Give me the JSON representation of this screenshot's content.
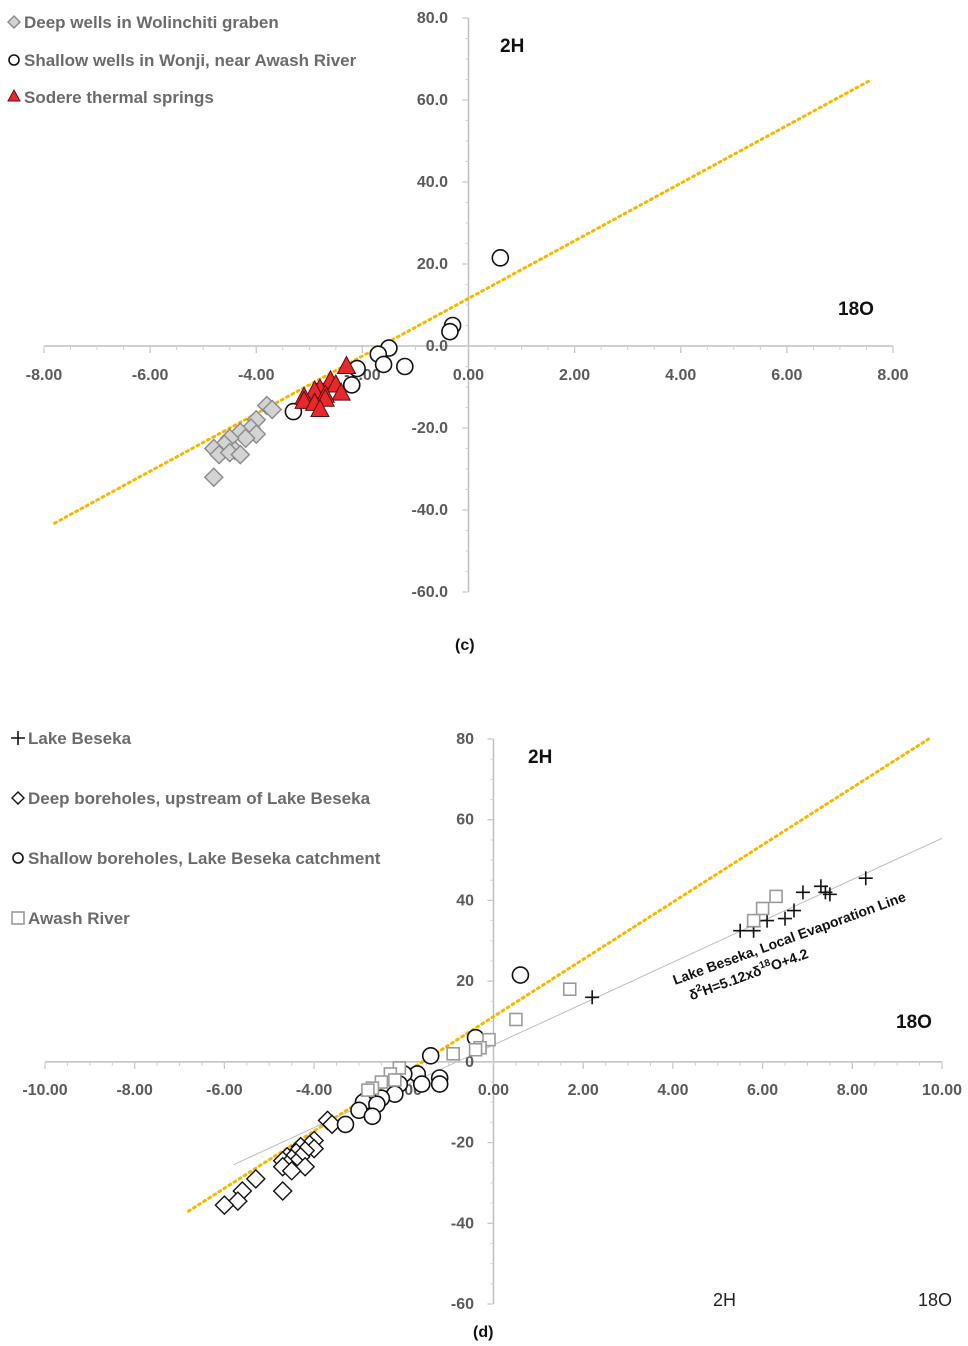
{
  "chart_data": [
    {
      "type": "scatter",
      "panel_label": "(c)",
      "xlabel": "18O",
      "ylabel": "2H",
      "xlim": [
        -8,
        8
      ],
      "ylim": [
        -60,
        80
      ],
      "x_ticks": [
        "-8.00",
        "-6.00",
        "-4.00",
        "-2.00",
        "0.00",
        "2.00",
        "4.00",
        "6.00",
        "8.00"
      ],
      "y_ticks": [
        "80.0",
        "60.0",
        "40.0",
        "20.0",
        "0.0",
        "-20.0",
        "-40.0",
        "-60.0"
      ],
      "legend_position": "top-left",
      "colors": {
        "line": "#f5b800",
        "triangle": "#e8282b",
        "diamond": "#d3d3d3"
      },
      "lines": [
        {
          "style": "dotted",
          "color": "#f5b800",
          "x": [
            -7.8,
            7.6
          ],
          "y": [
            -43.2,
            65.0
          ]
        }
      ],
      "series": [
        {
          "name": "Deep wells in Wolinchiti graben",
          "marker": "diamond",
          "points": [
            [
              -3.8,
              -14.5
            ],
            [
              -3.7,
              -15.5
            ],
            [
              -4.0,
              -18.0
            ],
            [
              -4.1,
              -20.0
            ],
            [
              -4.0,
              -21.5
            ],
            [
              -4.3,
              -21.0
            ],
            [
              -4.2,
              -22.5
            ],
            [
              -4.5,
              -22.5
            ],
            [
              -4.6,
              -24.0
            ],
            [
              -4.8,
              -25.0
            ],
            [
              -4.4,
              -25.5
            ],
            [
              -4.7,
              -26.5
            ],
            [
              -4.5,
              -26.0
            ],
            [
              -4.3,
              -26.5
            ],
            [
              -4.8,
              -32.0
            ]
          ]
        },
        {
          "name": "Shallow wells in Wonji, near Awash River",
          "marker": "circle",
          "points": [
            [
              0.6,
              21.5
            ],
            [
              -0.3,
              5.0
            ],
            [
              -0.35,
              3.5
            ],
            [
              -1.5,
              -0.5
            ],
            [
              -1.7,
              -2.0
            ],
            [
              -1.6,
              -4.5
            ],
            [
              -1.2,
              -5.0
            ],
            [
              -2.1,
              -5.5
            ],
            [
              -2.2,
              -9.5
            ],
            [
              -2.8,
              -11.0
            ],
            [
              -3.3,
              -16.0
            ]
          ]
        },
        {
          "name": "Sodere thermal springs",
          "marker": "triangle",
          "points": [
            [
              -2.3,
              -5.0
            ],
            [
              -2.6,
              -8.5
            ],
            [
              -2.5,
              -9.5
            ],
            [
              -2.8,
              -10.5
            ],
            [
              -2.9,
              -11.0
            ],
            [
              -2.4,
              -11.5
            ],
            [
              -2.7,
              -12.0
            ],
            [
              -3.1,
              -12.5
            ],
            [
              -2.7,
              -13.0
            ],
            [
              -3.1,
              -13.5
            ],
            [
              -2.9,
              -14.0
            ],
            [
              -2.8,
              -15.5
            ]
          ]
        }
      ]
    },
    {
      "type": "scatter",
      "panel_label": "(d)",
      "xlabel": "18O",
      "ylabel": "2H",
      "footer_labels": [
        "2H",
        "18O"
      ],
      "xlim": [
        -10,
        10
      ],
      "ylim": [
        -60,
        80
      ],
      "x_ticks": [
        "-10.00",
        "-8.00",
        "-6.00",
        "-4.00",
        "-2.00",
        "0.00",
        "2.00",
        "4.00",
        "6.00",
        "8.00",
        "10.00"
      ],
      "y_ticks": [
        "80",
        "60",
        "40",
        "20",
        "0",
        "-20",
        "-40",
        "-60"
      ],
      "legend_position": "top-left",
      "colors": {
        "line": "#f5b800",
        "evap_line": "#bdbdbd",
        "square": "#9a9a9a"
      },
      "lines": [
        {
          "style": "dotted",
          "color": "#f5b800",
          "x": [
            -6.8,
            9.7
          ],
          "y": [
            -37.0,
            80.0
          ]
        },
        {
          "style": "solid",
          "color": "#bdbdbd",
          "x": [
            -5.8,
            10.0
          ],
          "y": [
            -25.5,
            55.4
          ]
        }
      ],
      "annotation": {
        "line1": "Lake Beseka, Local Evaporation Line",
        "eq_a": "δ",
        "eq_b": "2",
        "eq_c": "H=5.12xδ",
        "eq_d": "18",
        "eq_e": "O+4.2"
      },
      "series": [
        {
          "name": "Lake Beseka",
          "marker": "plus",
          "points": [
            [
              2.2,
              16.0
            ],
            [
              5.5,
              32.5
            ],
            [
              5.8,
              32.5
            ],
            [
              5.8,
              33.5
            ],
            [
              6.1,
              35.0
            ],
            [
              6.5,
              35.5
            ],
            [
              6.7,
              37.5
            ],
            [
              6.9,
              42.0
            ],
            [
              7.3,
              43.5
            ],
            [
              7.4,
              42.0
            ],
            [
              7.5,
              41.5
            ],
            [
              8.3,
              45.5
            ]
          ]
        },
        {
          "name": "Deep boreholes, upstream of Lake Beseka",
          "marker": "diamond",
          "points": [
            [
              -3.7,
              -14.5
            ],
            [
              -3.6,
              -15.5
            ],
            [
              -4.0,
              -19.5
            ],
            [
              -4.1,
              -20.5
            ],
            [
              -4.3,
              -21.0
            ],
            [
              -4.0,
              -21.5
            ],
            [
              -4.2,
              -22.0
            ],
            [
              -4.4,
              -22.5
            ],
            [
              -4.6,
              -23.5
            ],
            [
              -4.3,
              -23.5
            ],
            [
              -4.5,
              -24.0
            ],
            [
              -4.7,
              -24.5
            ],
            [
              -4.4,
              -25.0
            ],
            [
              -4.6,
              -25.5
            ],
            [
              -4.2,
              -26.0
            ],
            [
              -4.7,
              -26.0
            ],
            [
              -4.5,
              -27.0
            ],
            [
              -5.3,
              -29.0
            ],
            [
              -5.6,
              -32.0
            ],
            [
              -4.7,
              -32.0
            ],
            [
              -5.7,
              -34.5
            ],
            [
              -6.0,
              -35.5
            ]
          ]
        },
        {
          "name": "Shallow boreholes, Lake Beseka catchment",
          "marker": "circle",
          "points": [
            [
              0.6,
              21.5
            ],
            [
              -1.4,
              1.5
            ],
            [
              -0.4,
              6.0
            ],
            [
              -1.2,
              -4.0
            ],
            [
              -1.7,
              -3.0
            ],
            [
              -2.0,
              -3.0
            ],
            [
              -1.6,
              -5.5
            ],
            [
              -1.2,
              -5.5
            ],
            [
              -2.1,
              -5.5
            ],
            [
              -2.2,
              -8.0
            ],
            [
              -2.5,
              -9.0
            ],
            [
              -2.8,
              -9.0
            ],
            [
              -2.9,
              -10.0
            ],
            [
              -2.6,
              -10.5
            ],
            [
              -3.0,
              -12.0
            ],
            [
              -2.7,
              -13.5
            ],
            [
              -3.3,
              -15.5
            ]
          ]
        },
        {
          "name": "Awash River",
          "marker": "square",
          "points": [
            [
              6.3,
              41.0
            ],
            [
              6.0,
              38.0
            ],
            [
              5.8,
              35.0
            ],
            [
              1.7,
              18.0
            ],
            [
              0.5,
              10.5
            ],
            [
              -0.1,
              5.5
            ],
            [
              -0.3,
              3.5
            ],
            [
              -0.4,
              3.0
            ],
            [
              -0.9,
              2.0
            ],
            [
              -2.1,
              -1.5
            ],
            [
              -2.3,
              -3.0
            ],
            [
              -2.2,
              -4.5
            ],
            [
              -2.5,
              -5.0
            ],
            [
              -2.7,
              -6.5
            ],
            [
              -2.8,
              -7.0
            ]
          ]
        }
      ]
    }
  ]
}
